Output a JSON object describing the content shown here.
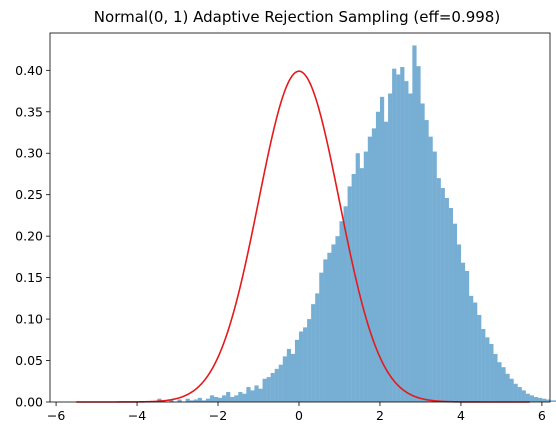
{
  "chart_data": {
    "type": "bar",
    "title": "Normal(0, 1) Adaptive Rejection Sampling (eff=0.998)",
    "xlabel": "",
    "ylabel": "",
    "xlim": [
      -6.15,
      6.2
    ],
    "ylim": [
      0.0,
      0.445
    ],
    "xticks": [
      -6,
      -4,
      -2,
      0,
      2,
      4,
      6
    ],
    "xtick_labels": [
      "−6",
      "−4",
      "−2",
      "0",
      "2",
      "4",
      "6"
    ],
    "yticks": [
      0.0,
      0.05,
      0.1,
      0.15,
      0.2,
      0.25,
      0.3,
      0.35,
      0.4
    ],
    "ytick_labels": [
      "0.00",
      "0.05",
      "0.10",
      "0.15",
      "0.20",
      "0.25",
      "0.30",
      "0.35",
      "0.40"
    ],
    "grid": false,
    "legend": "none",
    "series": [
      {
        "kind": "histogram",
        "color": "#77aed3",
        "bin_start": -5.5,
        "bin_width": 0.1,
        "values": [
          0,
          0,
          0,
          0,
          0,
          0,
          0,
          0,
          0,
          0,
          0,
          0,
          0,
          0,
          0,
          0,
          0,
          0,
          0,
          0,
          0.004,
          0.0,
          0.0,
          0.002,
          0.0,
          0.003,
          0.0,
          0.004,
          0.002,
          0.003,
          0.005,
          0.002,
          0.004,
          0.008,
          0.006,
          0.005,
          0.008,
          0.012,
          0.006,
          0.008,
          0.012,
          0.01,
          0.018,
          0.014,
          0.02,
          0.016,
          0.028,
          0.03,
          0.035,
          0.04,
          0.045,
          0.055,
          0.064,
          0.058,
          0.075,
          0.085,
          0.09,
          0.1,
          0.118,
          0.131,
          0.156,
          0.172,
          0.18,
          0.19,
          0.2,
          0.218,
          0.236,
          0.26,
          0.275,
          0.3,
          0.282,
          0.302,
          0.32,
          0.33,
          0.35,
          0.368,
          0.338,
          0.372,
          0.402,
          0.395,
          0.404,
          0.387,
          0.372,
          0.43,
          0.405,
          0.36,
          0.34,
          0.32,
          0.302,
          0.27,
          0.258,
          0.246,
          0.234,
          0.215,
          0.19,
          0.168,
          0.158,
          0.128,
          0.12,
          0.105,
          0.088,
          0.078,
          0.07,
          0.058,
          0.048,
          0.042,
          0.034,
          0.028,
          0.022,
          0.018,
          0.014,
          0.01,
          0.008,
          0.006,
          0.005,
          0.004,
          0.003,
          0.002,
          0.002,
          0.001,
          0.001,
          0.001,
          0.001,
          0.0,
          0.001,
          0.0,
          0.0,
          0.0,
          0.0,
          0.0,
          0,
          0,
          0,
          0,
          0,
          0,
          0,
          0,
          0,
          0,
          0,
          0,
          0,
          0,
          0,
          0,
          0,
          0,
          0,
          0
        ]
      },
      {
        "kind": "density-line",
        "color": "#e41a1c",
        "distribution": "normal",
        "mean": 0,
        "sd": 1,
        "x_range": [
          -5.5,
          5.7
        ]
      }
    ]
  }
}
